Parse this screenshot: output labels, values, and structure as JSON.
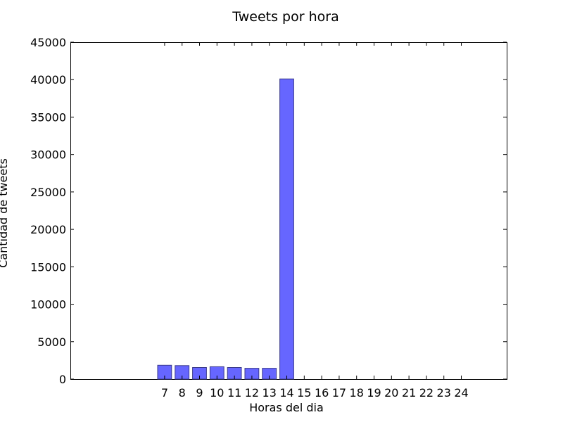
{
  "chart_data": {
    "type": "bar",
    "title": "Tweets por hora",
    "xlabel": "Horas del dia",
    "ylabel": "Cantidad de tweets",
    "categories": [
      "7",
      "8",
      "9",
      "10",
      "11",
      "12",
      "13",
      "14",
      "15",
      "16",
      "17",
      "18",
      "19",
      "20",
      "21",
      "22",
      "23",
      "24"
    ],
    "values": [
      1850,
      1800,
      1550,
      1650,
      1550,
      1450,
      1450,
      40100,
      0,
      0,
      0,
      0,
      0,
      0,
      0,
      0,
      0,
      0
    ],
    "ylim": [
      0,
      45000
    ],
    "yticks": [
      "0",
      "5000",
      "10000",
      "15000",
      "20000",
      "25000",
      "30000",
      "35000",
      "40000",
      "45000"
    ],
    "xlim": [
      1.6,
      26.6
    ],
    "grid": false,
    "legend": "none",
    "colors": {
      "bar_fill": "#6666ff",
      "bar_edge": "#3a3a8a",
      "axis": "#000000"
    }
  }
}
